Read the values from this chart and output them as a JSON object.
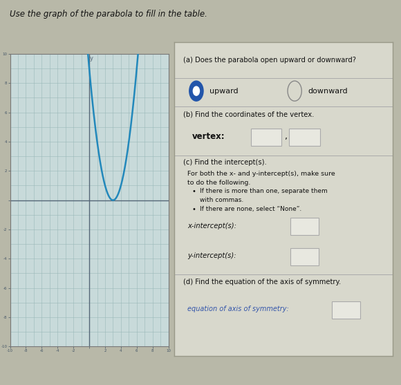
{
  "title": "Use the graph of the parabola to fill in the table.",
  "title_fontsize": 8.5,
  "bg_color": "#b8b8a8",
  "graph_bg": "#c8dada",
  "graph_grid_color": "#9ab8b8",
  "parabola_color": "#2288bb",
  "parabola_lw": 1.8,
  "vertex_x": 3,
  "vertex_y": 0,
  "parabola_a": 1.0,
  "x_range": [
    -10,
    10
  ],
  "y_range": [
    -10,
    10
  ],
  "axis_color": "#556677",
  "tick_color": "#445566",
  "panel_bg": "#d8d8cc",
  "panel_border": "#999988",
  "section_a_title": "(a) Does the parabola open upward or downward?",
  "radio_upward": "upward",
  "radio_downward": "downward",
  "section_b_title": "(b) Find the coordinates of the vertex.",
  "vertex_label": "vertex:",
  "section_c_title": "(c) Find the intercept(s).",
  "section_c_text1": "For both the x- and y-intercept(s), make sure",
  "section_c_text2": "to do the following.",
  "bullet1": "If there is more than one, separate them",
  "bullet1b": "with commas.",
  "bullet2": "If there are none, select “None”.",
  "x_intercept_label": "x-intercept(s):",
  "y_intercept_label": "y-intercept(s):",
  "section_d_title": "(d) Find the equation of the axis of symmetry.",
  "axis_sym_label": "equation of axis of symmetry:",
  "text_color": "#111111",
  "dark_text": "#333333",
  "blue_radio": "#2255aa",
  "italic_blue": "#3355aa",
  "sep_color": "#aaaaaa",
  "box_edge": "#aaaaaa",
  "box_face": "#e8e8e0"
}
